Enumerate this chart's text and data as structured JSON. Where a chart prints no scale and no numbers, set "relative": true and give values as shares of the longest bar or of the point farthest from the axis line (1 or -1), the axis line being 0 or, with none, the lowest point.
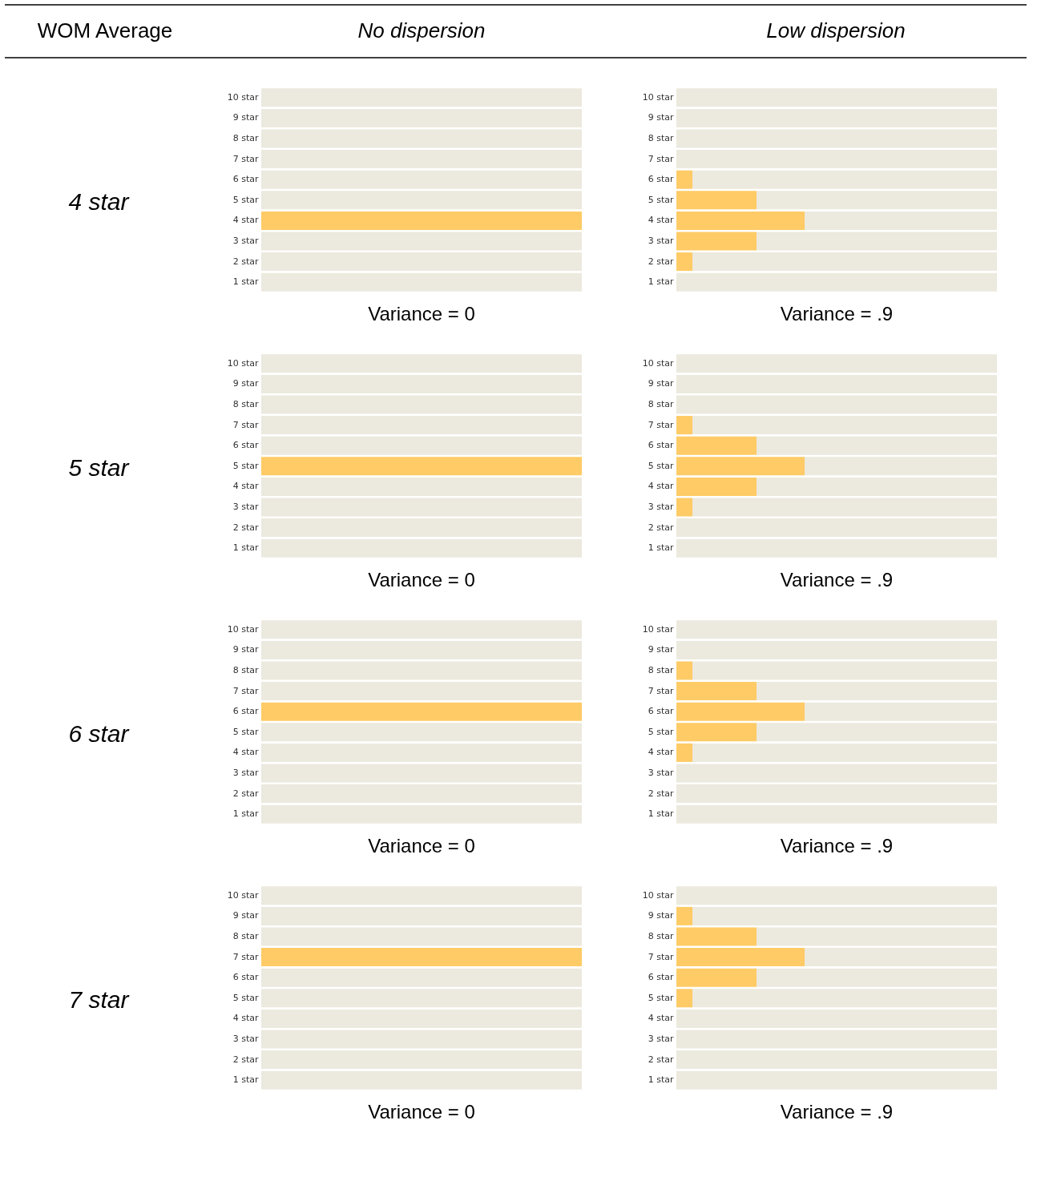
{
  "chart_data": [
    {
      "type": "bar",
      "title": "No dispersion",
      "ylabel": "4 star",
      "orientation": "horizontal",
      "stacked": true,
      "relative": true,
      "categories": [
        "10 star",
        "9 star",
        "8 star",
        "7 star",
        "6 star",
        "5 star",
        "4 star",
        "3 star",
        "2 star",
        "1 star"
      ],
      "series": [
        {
          "color": "#fecb66",
          "values": [
            null,
            null,
            null,
            null,
            null,
            null,
            1,
            null,
            null,
            null
          ]
        },
        {
          "color": "#ece9de",
          "values": [
            1,
            1,
            1,
            1,
            1,
            1,
            null,
            1,
            1,
            1
          ]
        }
      ],
      "annotations": [
        "Variance = 0",
        "WOM Average"
      ]
    },
    {
      "type": "bar",
      "title": "Low dispersion",
      "orientation": "horizontal",
      "stacked": true,
      "relative": true,
      "categories": [
        "10 star",
        "9 star",
        "8 star",
        "7 star",
        "6 star",
        "5 star",
        "4 star",
        "3 star",
        "2 star",
        "1 star"
      ],
      "series": [
        {
          "color": "#fecb66",
          "values": [
            null,
            null,
            null,
            null,
            0.05,
            0.25,
            0.4,
            0.25,
            0.05,
            null
          ]
        },
        {
          "color": "#ece9de",
          "values": [
            1,
            1,
            1,
            1,
            0.95,
            0.75,
            0.6,
            0.75,
            0.95,
            1
          ]
        }
      ],
      "annotations": [
        "Variance = .9"
      ]
    },
    {
      "type": "bar",
      "ylabel": "5 star",
      "orientation": "horizontal",
      "stacked": true,
      "relative": true,
      "categories": [
        "10 star",
        "9 star",
        "8 star",
        "7 star",
        "6 star",
        "5 star",
        "4 star",
        "3 star",
        "2 star",
        "1 star"
      ],
      "series": [
        {
          "color": "#fecb66",
          "values": [
            null,
            null,
            null,
            null,
            null,
            1,
            null,
            null,
            null,
            null
          ]
        },
        {
          "color": "#ece9de",
          "values": [
            1,
            1,
            1,
            1,
            1,
            null,
            1,
            1,
            1,
            1
          ]
        }
      ],
      "annotations": [
        "Variance = 0"
      ]
    },
    {
      "type": "bar",
      "orientation": "horizontal",
      "stacked": true,
      "relative": true,
      "categories": [
        "10 star",
        "9 star",
        "8 star",
        "7 star",
        "6 star",
        "5 star",
        "4 star",
        "3 star",
        "2 star",
        "1 star"
      ],
      "series": [
        {
          "color": "#fecb66",
          "values": [
            null,
            null,
            null,
            0.05,
            0.25,
            0.4,
            0.25,
            0.05,
            null,
            null
          ]
        },
        {
          "color": "#ece9de",
          "values": [
            1,
            1,
            1,
            0.95,
            0.75,
            0.6,
            0.75,
            0.95,
            1,
            1
          ]
        }
      ],
      "annotations": [
        "Variance = .9"
      ]
    },
    {
      "type": "bar",
      "ylabel": "6 star",
      "orientation": "horizontal",
      "stacked": true,
      "relative": true,
      "categories": [
        "10 star",
        "9 star",
        "8 star",
        "7 star",
        "6 star",
        "5 star",
        "4 star",
        "3 star",
        "2 star",
        "1 star"
      ],
      "series": [
        {
          "color": "#fecb66",
          "values": [
            null,
            null,
            null,
            null,
            1,
            null,
            null,
            null,
            null,
            null
          ]
        },
        {
          "color": "#ece9de",
          "values": [
            1,
            1,
            1,
            1,
            null,
            1,
            1,
            1,
            1,
            1
          ]
        }
      ],
      "annotations": [
        "Variance = 0"
      ]
    },
    {
      "type": "bar",
      "orientation": "horizontal",
      "stacked": true,
      "relative": true,
      "categories": [
        "10 star",
        "9 star",
        "8 star",
        "7 star",
        "6 star",
        "5 star",
        "4 star",
        "3 star",
        "2 star",
        "1 star"
      ],
      "series": [
        {
          "color": "#fecb66",
          "values": [
            null,
            null,
            0.05,
            0.25,
            0.4,
            0.25,
            0.05,
            null,
            null,
            null
          ]
        },
        {
          "color": "#ece9de",
          "values": [
            1,
            1,
            0.95,
            0.75,
            0.6,
            0.75,
            0.95,
            1,
            1,
            1
          ]
        }
      ],
      "annotations": [
        "Variance = .9"
      ]
    },
    {
      "type": "bar",
      "ylabel": "7 star",
      "orientation": "horizontal",
      "stacked": true,
      "relative": true,
      "categories": [
        "10 star",
        "9 star",
        "8 star",
        "7 star",
        "6 star",
        "5 star",
        "4 star",
        "3 star",
        "2 star",
        "1 star"
      ],
      "series": [
        {
          "color": "#fecb66",
          "values": [
            null,
            null,
            null,
            1,
            null,
            null,
            null,
            null,
            null,
            null
          ]
        },
        {
          "color": "#ece9de",
          "values": [
            1,
            1,
            1,
            null,
            1,
            1,
            1,
            1,
            1,
            1
          ]
        }
      ],
      "annotations": [
        "Variance = 0"
      ]
    },
    {
      "type": "bar",
      "orientation": "horizontal",
      "stacked": true,
      "relative": true,
      "categories": [
        "10 star",
        "9 star",
        "8 star",
        "7 star",
        "6 star",
        "5 star",
        "4 star",
        "3 star",
        "2 star",
        "1 star"
      ],
      "series": [
        {
          "color": "#fecb66",
          "values": [
            null,
            0.05,
            0.25,
            0.4,
            0.25,
            0.05,
            null,
            null,
            null,
            null
          ]
        },
        {
          "color": "#ece9de",
          "values": [
            1,
            0.95,
            0.75,
            0.6,
            0.75,
            0.95,
            1,
            1,
            1,
            1
          ]
        }
      ],
      "annotations": [
        "Variance = .9"
      ]
    }
  ]
}
